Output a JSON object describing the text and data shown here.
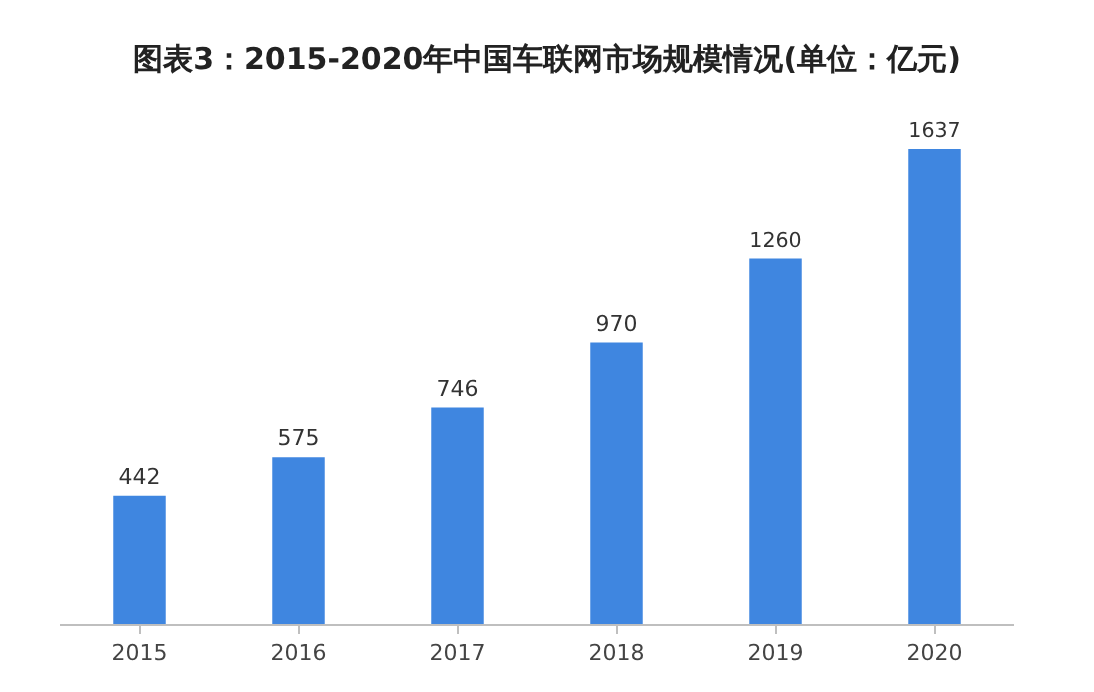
{
  "chart_data": {
    "type": "bar",
    "title": "图表3：2015-2020年中国车联网市场规模情况(单位：亿元)",
    "categories": [
      "2015",
      "2016",
      "2017",
      "2018",
      "2019",
      "2020"
    ],
    "values": [
      442,
      575,
      746,
      970,
      1260,
      1637
    ],
    "color": "#3f86e0",
    "data_labels": true,
    "grid": false,
    "tick_labels": "x"
  }
}
